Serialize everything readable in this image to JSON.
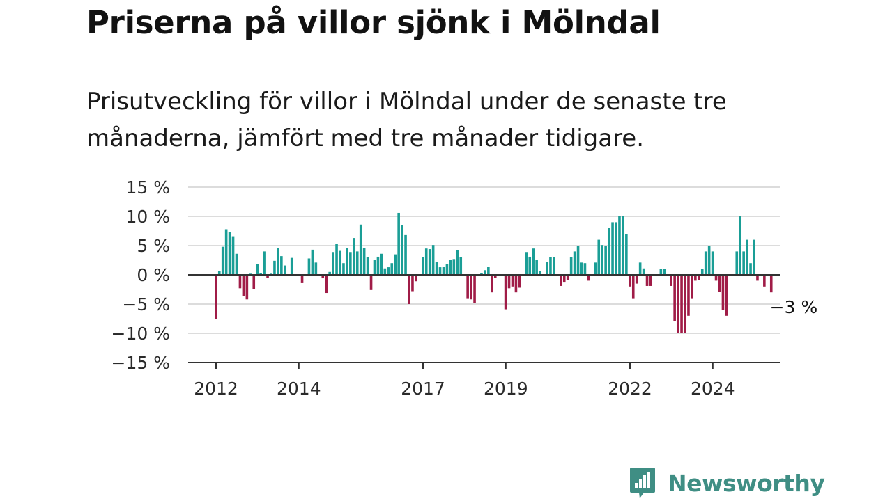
{
  "title": "Priserna på villor sjönk i Mölndal",
  "subtitle": "Prisutveckling för villor i Mölndal under de senaste tre månaderna, jämfört med tre månader tidigare.",
  "brand": {
    "name": "Newsworthy"
  },
  "colors": {
    "positive": "#1a9e96",
    "negative": "#a01c47",
    "grid": "#dcdcdc",
    "zero_line": "#333333",
    "brand": "#3f8e84"
  },
  "chart_data": {
    "type": "bar",
    "title": "",
    "xlabel": "",
    "ylabel": "",
    "ylim": [
      -15,
      15
    ],
    "y_ticks": [
      15,
      10,
      5,
      0,
      -5,
      -10,
      -15
    ],
    "y_tick_labels": [
      "15 %",
      "10 %",
      "5 %",
      "0 %",
      "−5 %",
      "−10 %",
      "−15 %"
    ],
    "x_tick_labels": [
      "2012",
      "2014",
      "2017",
      "2019",
      "2022",
      "2024"
    ],
    "x_ticks": [
      2012,
      2014,
      2017,
      2019,
      2022,
      2024
    ],
    "x_start": 2012,
    "x_step_months": 1,
    "grid": true,
    "last_value_label": "−3 %",
    "values": [
      -7.5,
      0.6,
      4.8,
      7.8,
      7.3,
      6.6,
      3.6,
      -2.3,
      -3.6,
      -4.2,
      0.2,
      -2.5,
      1.8,
      0.3,
      4.0,
      -0.5,
      0.2,
      2.4,
      4.6,
      3.2,
      1.6,
      0,
      2.9,
      0,
      0,
      -1.3,
      0,
      2.8,
      4.3,
      2.1,
      0,
      -0.6,
      -3.1,
      0.5,
      3.9,
      5.3,
      4.1,
      2.0,
      4.6,
      3.9,
      6.3,
      4.0,
      8.6,
      4.6,
      3.0,
      -2.6,
      2.6,
      3.1,
      3.6,
      1.1,
      1.3,
      2.0,
      3.5,
      10.6,
      8.5,
      6.8,
      -5.0,
      -2.8,
      -1.1,
      0,
      3.0,
      4.5,
      4.4,
      5.1,
      2.2,
      1.3,
      1.4,
      1.9,
      2.6,
      2.7,
      4.2,
      3.0,
      0,
      -4.0,
      -4.2,
      -4.8,
      0,
      0.3,
      0.8,
      1.4,
      -3.0,
      -0.5,
      0,
      0,
      -5.9,
      -2.3,
      -2.0,
      -3.0,
      -2.2,
      0,
      3.9,
      3.1,
      4.5,
      2.5,
      0.6,
      0,
      2.2,
      3.0,
      3.0,
      0,
      -1.9,
      -1.2,
      -0.9,
      3.0,
      4.0,
      5.0,
      2.1,
      2.0,
      -1.0,
      0,
      2.1,
      6.0,
      5.1,
      5.0,
      8.0,
      9.0,
      9.0,
      10.0,
      10.0,
      7.0,
      -2.0,
      -4.0,
      -1.5,
      2.1,
      1.1,
      -1.9,
      -1.9,
      0,
      0,
      1.0,
      1.0,
      0,
      -1.9,
      -7.9,
      -10.0,
      -10.0,
      -10.0,
      -7.0,
      -4.0,
      -1.0,
      -0.9,
      1.0,
      4.0,
      5.0,
      4.0,
      -1.0,
      -2.9,
      -6.0,
      -7.0,
      0,
      0,
      4.0,
      10.0,
      4.0,
      6.0,
      2.0,
      6.0,
      -1.0,
      0,
      -2.0,
      0,
      -3.0
    ]
  }
}
